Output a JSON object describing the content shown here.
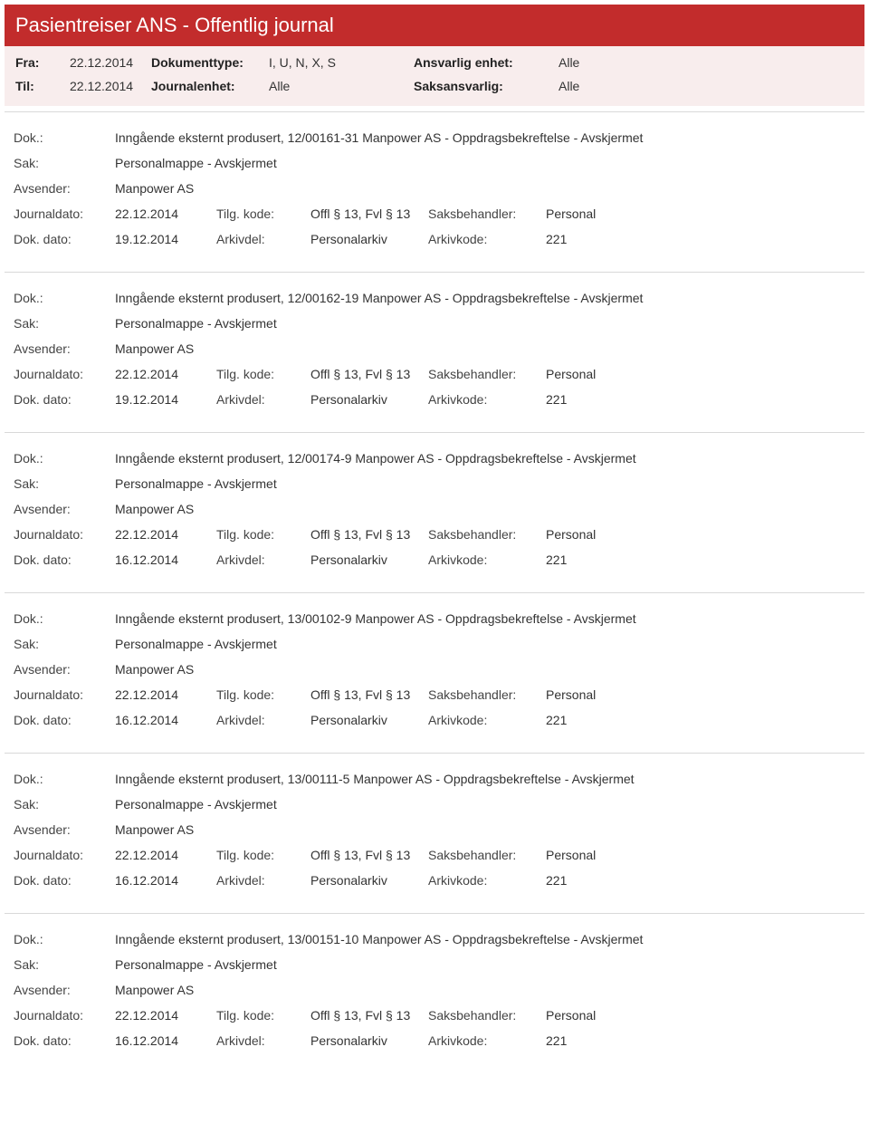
{
  "header": {
    "title": "Pasientreiser ANS - Offentlig journal",
    "fra_label": "Fra:",
    "fra_value": "22.12.2014",
    "til_label": "Til:",
    "til_value": "22.12.2014",
    "dokumenttype_label": "Dokumenttype:",
    "dokumenttype_value": "I, U, N, X, S",
    "journalenhet_label": "Journalenhet:",
    "journalenhet_value": "Alle",
    "ansvarlig_label": "Ansvarlig enhet:",
    "ansvarlig_value": "Alle",
    "saksansvarlig_label": "Saksansvarlig:",
    "saksansvarlig_value": "Alle"
  },
  "labels": {
    "dok": "Dok.:",
    "sak": "Sak:",
    "avsender": "Avsender:",
    "journaldato": "Journaldato:",
    "dokdato": "Dok. dato:",
    "tilgkode": "Tilg. kode:",
    "arkivdel": "Arkivdel:",
    "saksbehandler": "Saksbehandler:",
    "arkivkode": "Arkivkode:"
  },
  "entries": [
    {
      "dok": "Inngående eksternt produsert, 12/00161-31 Manpower AS - Oppdragsbekreftelse - Avskjermet",
      "sak": "Personalmappe - Avskjermet",
      "avsender": "Manpower AS",
      "journaldato": "22.12.2014",
      "dokdato": "19.12.2014",
      "tilgkode": "Offl § 13, Fvl § 13",
      "arkivdel": "Personalarkiv",
      "saksbehandler": "Personal",
      "arkivkode": "221"
    },
    {
      "dok": "Inngående eksternt produsert, 12/00162-19 Manpower AS - Oppdragsbekreftelse - Avskjermet",
      "sak": "Personalmappe - Avskjermet",
      "avsender": "Manpower AS",
      "journaldato": "22.12.2014",
      "dokdato": "19.12.2014",
      "tilgkode": "Offl § 13, Fvl § 13",
      "arkivdel": "Personalarkiv",
      "saksbehandler": "Personal",
      "arkivkode": "221"
    },
    {
      "dok": "Inngående eksternt produsert, 12/00174-9 Manpower AS - Oppdragsbekreftelse - Avskjermet",
      "sak": "Personalmappe - Avskjermet",
      "avsender": "Manpower AS",
      "journaldato": "22.12.2014",
      "dokdato": "16.12.2014",
      "tilgkode": "Offl § 13, Fvl § 13",
      "arkivdel": "Personalarkiv",
      "saksbehandler": "Personal",
      "arkivkode": "221"
    },
    {
      "dok": "Inngående eksternt produsert, 13/00102-9 Manpower AS - Oppdragsbekreftelse - Avskjermet",
      "sak": "Personalmappe - Avskjermet",
      "avsender": "Manpower AS",
      "journaldato": "22.12.2014",
      "dokdato": "16.12.2014",
      "tilgkode": "Offl § 13, Fvl § 13",
      "arkivdel": "Personalarkiv",
      "saksbehandler": "Personal",
      "arkivkode": "221"
    },
    {
      "dok": "Inngående eksternt produsert, 13/00111-5 Manpower AS - Oppdragsbekreftelse - Avskjermet",
      "sak": "Personalmappe - Avskjermet",
      "avsender": "Manpower AS",
      "journaldato": "22.12.2014",
      "dokdato": "16.12.2014",
      "tilgkode": "Offl § 13, Fvl § 13",
      "arkivdel": "Personalarkiv",
      "saksbehandler": "Personal",
      "arkivkode": "221"
    },
    {
      "dok": "Inngående eksternt produsert, 13/00151-10 Manpower AS - Oppdragsbekreftelse - Avskjermet",
      "sak": "Personalmappe - Avskjermet",
      "avsender": "Manpower AS",
      "journaldato": "22.12.2014",
      "dokdato": "16.12.2014",
      "tilgkode": "Offl § 13, Fvl § 13",
      "arkivdel": "Personalarkiv",
      "saksbehandler": "Personal",
      "arkivkode": "221"
    }
  ]
}
